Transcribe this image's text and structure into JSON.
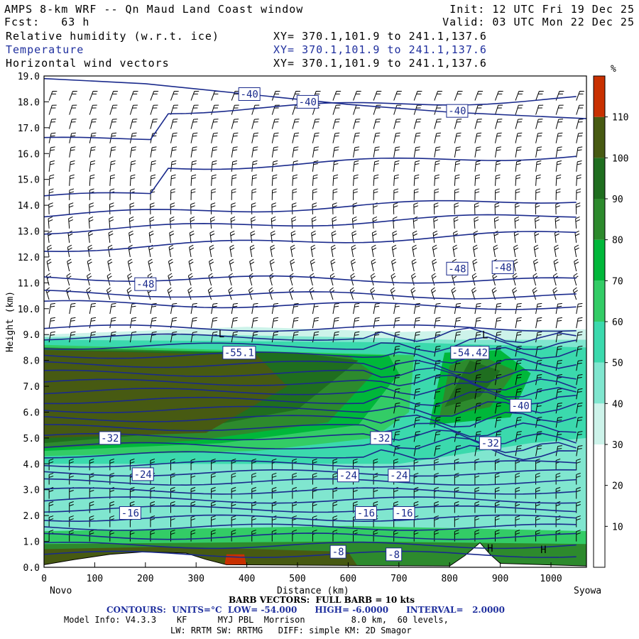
{
  "header": {
    "title": "AMPS 8-km WRF -- Qn Maud Land Coast window",
    "fcst": "Fcst:   63 h",
    "init": "Init: 12 UTC Fri 19 Dec 25",
    "valid": "Valid: 03 UTC Mon 22 Dec 25",
    "fields": [
      {
        "name": "Relative humidity (w.r.t. ice)",
        "xy": "XY= 370.1,101.9 to 241.1,137.6"
      },
      {
        "name": "Temperature",
        "xy": "XY= 370.1,101.9 to 241.1,137.6"
      },
      {
        "name": "Horizontal wind vectors",
        "xy": "XY= 370.1,101.9 to 241.1,137.6"
      }
    ]
  },
  "footer": {
    "left_label": "Novo",
    "right_label": "Syowa",
    "barb_note": "BARB VECTORS:  FULL BARB = 10 kts",
    "contours": "CONTOURS:  UNITS=°C  LOW= -54.000      HIGH= -6.0000      INTERVAL=   2.0000",
    "model_info": "Model Info: V4.3.3    KF      MYJ PBL  Morrison         8.0 km,  60 levels,",
    "model_info2": "LW: RRTM SW: RRTMG   DIFF: simple KM: 2D Smagor"
  },
  "colors": {
    "contour": "#1a2a8c",
    "rh_bands": [
      "#ffffff",
      "#ffffff",
      "#ffffff",
      "#cdf3ea",
      "#80e6cf",
      "#3bd9ad",
      "#33cc66",
      "#00b73a",
      "#2d8a2d",
      "#1f6e1f",
      "#475a12",
      "#c83000"
    ]
  },
  "chart_data": {
    "type": "heatmap",
    "xlabel": "Distance (km)",
    "ylabel": "Height (km)",
    "xlim": [
      0,
      1070
    ],
    "ylim": [
      0,
      19
    ],
    "x_ticks": [
      0,
      100,
      200,
      300,
      400,
      500,
      600,
      700,
      800,
      900,
      1000
    ],
    "y_ticks": [
      "0.0",
      "1.0",
      "2.0",
      "3.0",
      "4.0",
      "5.0",
      "6.0",
      "7.0",
      "8.0",
      "9.0",
      "10.0",
      "11.0",
      "12.0",
      "13.0",
      "14.0",
      "15.0",
      "16.0",
      "17.0",
      "18.0",
      "19.0"
    ],
    "colorbar": {
      "unit": "%",
      "ticks": [
        10,
        20,
        30,
        40,
        50,
        60,
        70,
        80,
        90,
        100,
        110
      ],
      "colors": [
        "#ffffff",
        "#ffffff",
        "#ffffff",
        "#cdf3ea",
        "#80e6cf",
        "#3bd9ad",
        "#33cc66",
        "#00b73a",
        "#2d8a2d",
        "#1f6e1f",
        "#475a12",
        "#c83000"
      ]
    },
    "contour_labels": [
      {
        "text": "-40",
        "x": 405,
        "y": 18.3
      },
      {
        "text": "-40",
        "x": 520,
        "y": 18.0
      },
      {
        "text": "-40",
        "x": 815,
        "y": 17.65
      },
      {
        "text": "-48",
        "x": 200,
        "y": 10.95
      },
      {
        "text": "-48",
        "x": 815,
        "y": 11.55
      },
      {
        "text": "-48",
        "x": 905,
        "y": 11.6
      },
      {
        "text": "-55.1",
        "x": 385,
        "y": 8.3
      },
      {
        "text": "-54.42",
        "x": 840,
        "y": 8.3
      },
      {
        "text": "-40",
        "x": 940,
        "y": 6.25
      },
      {
        "text": "-32",
        "x": 130,
        "y": 5.0
      },
      {
        "text": "-32",
        "x": 665,
        "y": 5.0
      },
      {
        "text": "-32",
        "x": 880,
        "y": 4.8
      },
      {
        "text": "-24",
        "x": 195,
        "y": 3.6
      },
      {
        "text": "-24",
        "x": 600,
        "y": 3.55
      },
      {
        "text": "-24",
        "x": 700,
        "y": 3.55
      },
      {
        "text": "-16",
        "x": 170,
        "y": 2.1
      },
      {
        "text": "-16",
        "x": 635,
        "y": 2.1
      },
      {
        "text": "-16",
        "x": 710,
        "y": 2.1
      },
      {
        "text": "-8",
        "x": 580,
        "y": 0.6
      },
      {
        "text": "-8",
        "x": 690,
        "y": 0.5
      }
    ],
    "pressure_marks": [
      {
        "text": "L",
        "x": 350,
        "y": 8.9
      },
      {
        "text": "L",
        "x": 870,
        "y": 8.85
      },
      {
        "text": "H",
        "x": 880,
        "y": 0.6
      },
      {
        "text": "H",
        "x": 985,
        "y": 0.55
      }
    ]
  }
}
